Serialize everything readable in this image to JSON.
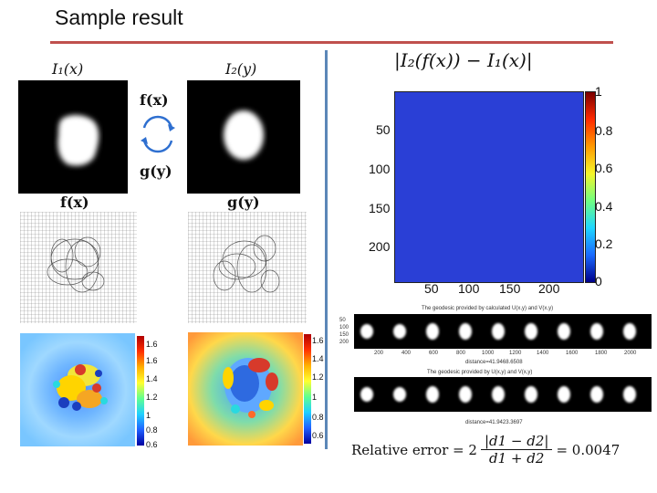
{
  "slide": {
    "title": "Sample result"
  },
  "left": {
    "i1_label": "I₁(x)",
    "i2_label": "I₂(y)",
    "arrow_top_label": "f(x)",
    "arrow_bottom_label": "g(y)",
    "grid_f_label": "f(x)",
    "grid_g_label": "g(y)",
    "cb1_ticks": [
      "1.6",
      "1.6",
      "1.4",
      "1.2",
      "1",
      "0.8",
      "0.6"
    ],
    "cb2_ticks": [
      "1.6",
      "1.4",
      "1.2",
      "1",
      "0.8",
      "0.6"
    ]
  },
  "right": {
    "diff_label": "|I₂(f(x)) − I₁(x)|",
    "y_ticks": [
      "50",
      "100",
      "150",
      "200"
    ],
    "x_ticks": [
      "50",
      "100",
      "150",
      "200"
    ],
    "cb_ticks": [
      "1",
      "0.8",
      "0.6",
      "0.4",
      "0.2",
      "0"
    ],
    "strip1_caption": "The geodesic provided by calculated U(x,y) and V(x,y)",
    "strip1_distance": "distance=41.9468.6508",
    "strip1_yticks": [
      "50",
      "100",
      "150",
      "200"
    ],
    "strip1_xticks": [
      "200",
      "400",
      "600",
      "800",
      "1000",
      "1200",
      "1400",
      "1600",
      "1800",
      "2000"
    ],
    "strip2_caption": "The geodesic provided by U(x,y) and V(x,y)",
    "strip2_distance": "distance=41.9423.3697",
    "formula": {
      "prefix": "Relative error = 2",
      "numerator": "|d1 − d2|",
      "denominator": "d1 + d2",
      "result": "= 0.0047"
    }
  }
}
